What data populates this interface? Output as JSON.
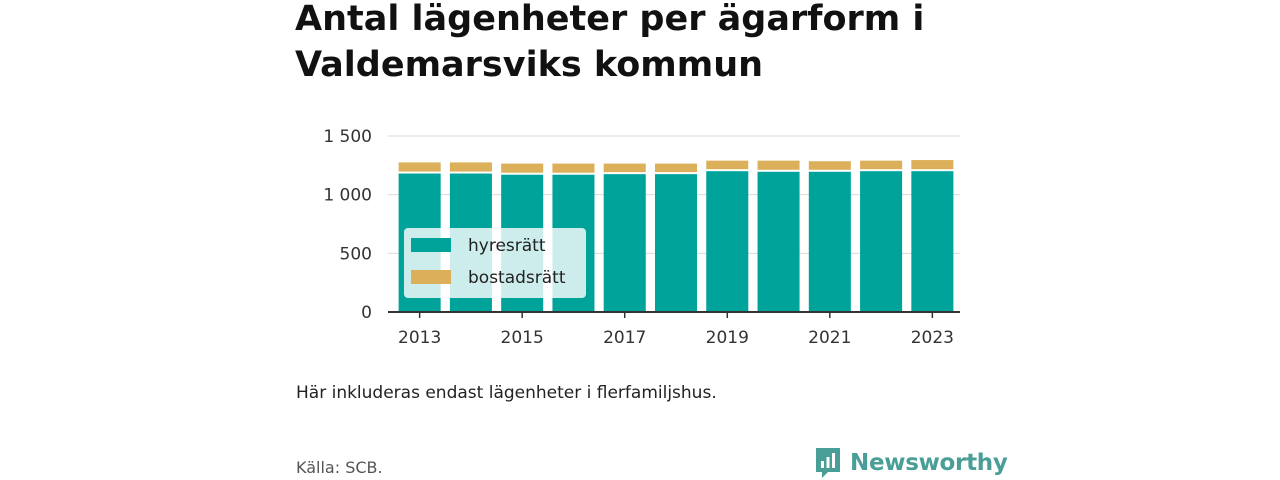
{
  "page": {
    "title": "Antal lägenheter per ägarform i Valdemarsviks kommun",
    "note": "Här inkluderas endast lägenheter i flerfamiljshus.",
    "source": "Källa: SCB.",
    "brand": "Newsworthy"
  },
  "colors": {
    "hyresratt": "#00a39a",
    "bostadsratt": "#dcb05a",
    "grid": "#d9d9d9",
    "axis": "#333333",
    "brand": "#4a9e98"
  },
  "chart_data": {
    "type": "bar",
    "stacked": true,
    "title": "Antal lägenheter per ägarform i Valdemarsviks kommun",
    "xlabel": "",
    "ylabel": "",
    "ylim": [
      0,
      1500
    ],
    "grid": true,
    "legend_position": "bottom-left",
    "categories": [
      "2013",
      "2014",
      "2015",
      "2016",
      "2017",
      "2018",
      "2019",
      "2020",
      "2021",
      "2022",
      "2023"
    ],
    "x_tick_labels": [
      "2013",
      "2015",
      "2017",
      "2019",
      "2021",
      "2023"
    ],
    "y_tick_labels": [
      "0",
      "500",
      "1 000",
      "1 500"
    ],
    "y_ticks": [
      0,
      500,
      1000,
      1500
    ],
    "series": [
      {
        "name": "hyresrätt",
        "values": [
          1180,
          1180,
          1170,
          1170,
          1175,
          1175,
          1200,
          1195,
          1195,
          1200,
          1200
        ]
      },
      {
        "name": "bostadsrätt",
        "values": [
          95,
          95,
          95,
          95,
          90,
          90,
          90,
          95,
          90,
          90,
          95
        ]
      }
    ]
  }
}
